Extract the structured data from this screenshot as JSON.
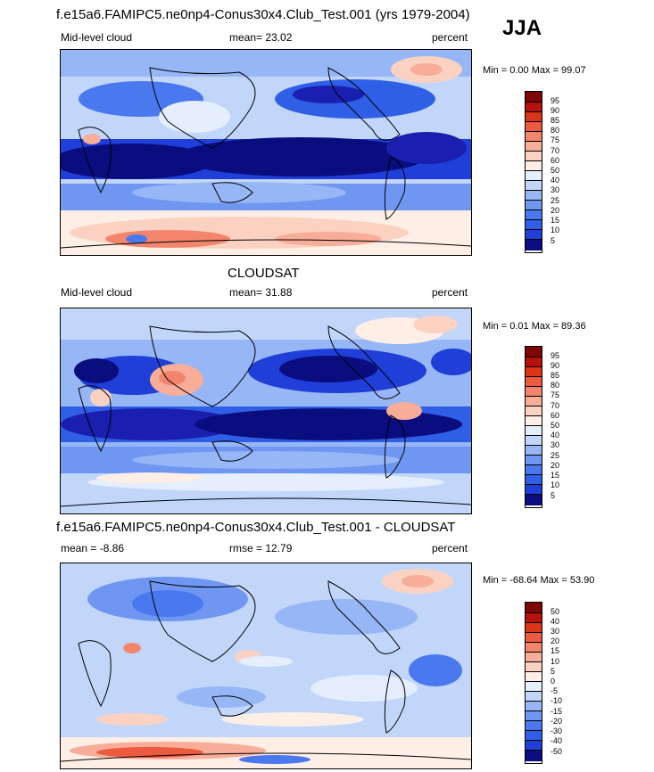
{
  "season": "JJA",
  "colors": [
    "#0a0d7e",
    "#1a1fb0",
    "#1f3fd8",
    "#2f5fe6",
    "#4a78ee",
    "#6f97f2",
    "#97b6f6",
    "#c2d6fa",
    "#e5eefc",
    "#fdeee6",
    "#fbd2c2",
    "#f7ad98",
    "#f2856c",
    "#ec5a3f",
    "#dc3416",
    "#b5120a",
    "#7e0606"
  ],
  "panels": [
    {
      "top_title": "f.e15a6.FAMIPC5.ne0np4-Conus30x4.Club_Test.001 (yrs 1979-2004)",
      "left_label": "Mid-level cloud",
      "center_label": "mean=  23.02",
      "right_label": "percent",
      "min_max": "Min =   0.00 Max =  99.07",
      "levels": [
        "95",
        "90",
        "85",
        "80",
        "75",
        "70",
        "60",
        "50",
        "40",
        "30",
        "25",
        "20",
        "15",
        "10",
        "5"
      ]
    },
    {
      "top_title": "CLOUDSAT",
      "left_label": "Mid-level cloud",
      "center_label": "mean=  31.88",
      "right_label": "percent",
      "min_max": "Min =   0.01 Max =  89.36",
      "levels": [
        "95",
        "90",
        "85",
        "80",
        "75",
        "70",
        "60",
        "50",
        "40",
        "30",
        "25",
        "20",
        "15",
        "10",
        "5"
      ]
    },
    {
      "top_title": "f.e15a6.FAMIPC5.ne0np4-Conus30x4.Club_Test.001 - CLOUDSAT",
      "left_label": "mean =  -8.86",
      "center_label": "rmse =  12.79",
      "right_label": "percent",
      "min_max": "Min = -68.64 Max =  53.90",
      "levels": [
        "50",
        "40",
        "30",
        "20",
        "15",
        "10",
        "5",
        "0",
        "-5",
        "-10",
        "-15",
        "-20",
        "-30",
        "-40",
        "-50"
      ]
    }
  ]
}
